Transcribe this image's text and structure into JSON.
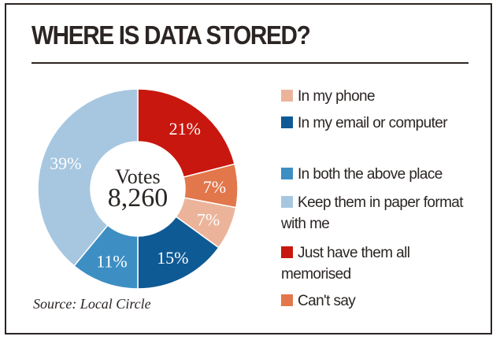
{
  "chart_data": {
    "type": "pie",
    "title": "WHERE IS DATA STORED?",
    "center_label": "Votes",
    "center_value": "8,260",
    "source": "Source: Local Circle",
    "slices_order": "clockwise from top",
    "slices": [
      {
        "label": "Just have them all memorised",
        "value": 21,
        "display": "21%",
        "color": "#c8170f"
      },
      {
        "label": "Can't say",
        "value": 7,
        "display": "7%",
        "color": "#e2774b"
      },
      {
        "label": "In my phone",
        "value": 7,
        "display": "7%",
        "color": "#ebb49a"
      },
      {
        "label": "In my email or computer",
        "value": 15,
        "display": "15%",
        "color": "#0e5a94"
      },
      {
        "label": "In both the above place",
        "value": 11,
        "display": "11%",
        "color": "#3d8fc3"
      },
      {
        "label": "Keep them in paper format with me",
        "value": 39,
        "display": "39%",
        "color": "#a7c7e0"
      }
    ],
    "legend": [
      {
        "label": "In my phone",
        "color": "#ebb49a"
      },
      {
        "label": "In my email or computer",
        "color": "#0e5a94"
      },
      {
        "label": "In both the above place",
        "color": "#3d8fc3"
      },
      {
        "label": "Keep them in paper format with me",
        "color": "#a7c7e0"
      },
      {
        "label": "Just have them all memorised",
        "color": "#c8170f"
      },
      {
        "label": "Can't say",
        "color": "#e2774b"
      }
    ]
  }
}
